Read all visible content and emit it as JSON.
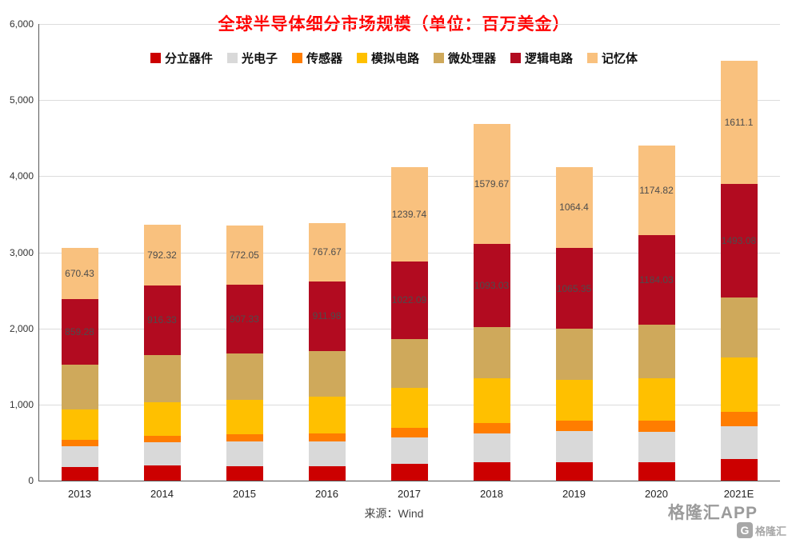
{
  "chart_data": {
    "type": "bar",
    "variant": "stacked",
    "title": "全球半导体细分市场规模（单位：百万美金）",
    "xlabel": "",
    "ylabel": "",
    "ylim": [
      0,
      6000
    ],
    "y_ticks": [
      "0",
      "1,000",
      "2,000",
      "3,000",
      "4,000",
      "5,000",
      "6,000"
    ],
    "grid": "horizontal",
    "legend_position": "top",
    "categories": [
      "2013",
      "2014",
      "2015",
      "2016",
      "2017",
      "2018",
      "2019",
      "2020",
      "2021E"
    ],
    "series": [
      {
        "name": "分立器件",
        "color": "#CC0000",
        "labeled": false,
        "values": [
          181,
          202,
          186,
          194,
          216,
          241,
          239,
          238,
          280
        ]
      },
      {
        "name": "光电子",
        "color": "#D9D9D9",
        "labeled": false,
        "values": [
          276,
          299,
          333,
          322,
          348,
          380,
          416,
          404,
          430
        ]
      },
      {
        "name": "传感器",
        "color": "#FF7D00",
        "labeled": false,
        "values": [
          80,
          86,
          88,
          107,
          126,
          134,
          135,
          150,
          190
        ]
      },
      {
        "name": "模拟电路",
        "color": "#FFC000",
        "labeled": false,
        "values": [
          401,
          444,
          452,
          478,
          531,
          588,
          539,
          557,
          720
        ]
      },
      {
        "name": "微处理器",
        "color": "#CFA95B",
        "labeled": false,
        "values": [
          587,
          621,
          613,
          606,
          639,
          672,
          664,
          696,
          790
        ]
      },
      {
        "name": "逻辑电路",
        "color": "#B20B20",
        "labeled": true,
        "values": [
          859.28,
          916.33,
          907.33,
          911.98,
          1022.09,
          1093.03,
          1065.35,
          1184.03,
          1493.08
        ],
        "labels": [
          "859.28",
          "916.33",
          "907.33",
          "911.98",
          "1022.09",
          "1093.03",
          "1065.35",
          "1184.03",
          "1493.08"
        ]
      },
      {
        "name": "记忆体",
        "color": "#F9C17E",
        "labeled": true,
        "values": [
          670.43,
          792.32,
          772.05,
          767.67,
          1239.74,
          1579.67,
          1064.4,
          1174.82,
          1611.1
        ],
        "labels": [
          "670.43",
          "792.32",
          "772.05",
          "767.67",
          "1239.74",
          "1579.67",
          "1064.4",
          "1174.82",
          "1611.1"
        ]
      }
    ]
  },
  "footer": {
    "source": "来源：Wind",
    "watermark": "格隆汇APP",
    "logo_letter": "G",
    "logo_text": "格隆汇"
  }
}
